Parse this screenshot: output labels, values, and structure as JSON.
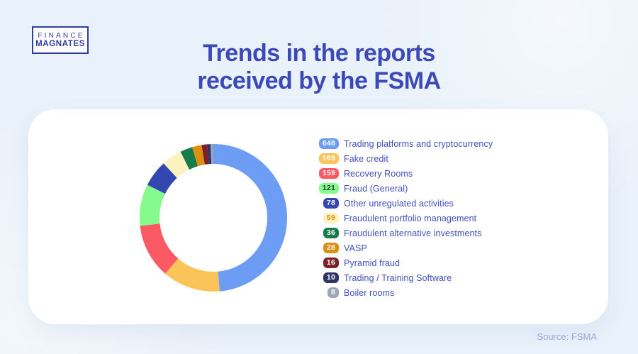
{
  "logo": {
    "line1": "FINANCE",
    "line2": "MAGNATES"
  },
  "title": {
    "line1": "Trends in the reports",
    "line2": "received by the FSMA"
  },
  "source": "Source: FSMA",
  "colors": {
    "background": "#e9f1fa",
    "card": "#ffffff",
    "title_text": "#3b4ab8",
    "legend_text": "#4250bd",
    "source_text": "#96a8d3",
    "logo_border": "#2f3f9e"
  },
  "chart_data": {
    "type": "pie",
    "subtype": "donut",
    "title": "Trends in the reports received by the FSMA",
    "total": 1332,
    "start_angle_deg": 0,
    "direction": "clockwise",
    "inner_radius_ratio": 0.73,
    "legend_position": "right",
    "segments": [
      {
        "label": "Trading platforms and cryptocurrency",
        "value": 648,
        "color": "#6d9cf5",
        "badge_text_color": "#ffffff"
      },
      {
        "label": "Fake credit",
        "value": 169,
        "color": "#fac458",
        "badge_text_color": "#ffffff"
      },
      {
        "label": "Recovery Rooms",
        "value": 159,
        "color": "#fb5964",
        "badge_text_color": "#ffffff"
      },
      {
        "label": "Fraud (General)",
        "value": 121,
        "color": "#85fa8d",
        "badge_text_color": "#1b4332"
      },
      {
        "label": "Other unregulated activities",
        "value": 78,
        "color": "#3447b1",
        "badge_text_color": "#ffffff"
      },
      {
        "label": "Fraudulent portfolio management",
        "value": 59,
        "color": "#fcf2c0",
        "badge_text_color": "#dd920f"
      },
      {
        "label": "Fraudulent alternative investments",
        "value": 36,
        "color": "#157c4a",
        "badge_text_color": "#ffffff"
      },
      {
        "label": "VASP",
        "value": 28,
        "color": "#dd8f10",
        "badge_text_color": "#ffffff"
      },
      {
        "label": "Pyramid fraud",
        "value": 16,
        "color": "#7d2129",
        "badge_text_color": "#ffffff"
      },
      {
        "label": "Trading / Training Software",
        "value": 10,
        "color": "#2f3366",
        "badge_text_color": "#ffffff"
      },
      {
        "label": "Boiler rooms",
        "value": 8,
        "color": "#9ca6b8",
        "badge_text_color": "#ffffff"
      }
    ]
  }
}
